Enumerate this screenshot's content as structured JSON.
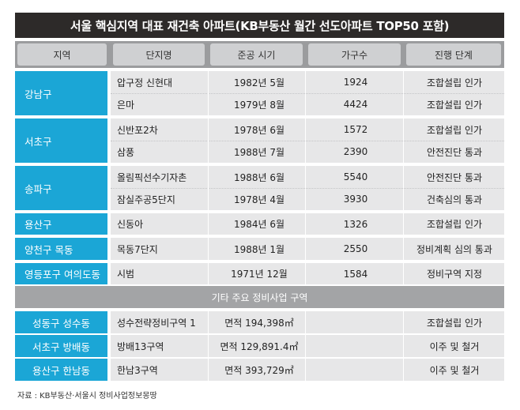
{
  "title": "서울 핵심지역 대표 재건축 아파트(KB부동산 월간 선도아파트 TOP50 포함)",
  "headers": {
    "region": "지역",
    "complex": "단지명",
    "year": "준공 시기",
    "households": "가구수",
    "stage": "진행 단계"
  },
  "groups": [
    {
      "region": "강남구",
      "rows": [
        {
          "name": "압구정 신현대",
          "year": "1982년 5월",
          "households": "1924",
          "stage": "조합설립 인가"
        },
        {
          "name": "은마",
          "year": "1979년 8월",
          "households": "4424",
          "stage": "조합설립 인가"
        }
      ]
    },
    {
      "region": "서초구",
      "rows": [
        {
          "name": "신반포2차",
          "year": "1978년 6월",
          "households": "1572",
          "stage": "조합설립 인가"
        },
        {
          "name": "삼풍",
          "year": "1988년 7월",
          "households": "2390",
          "stage": "안전진단 통과"
        }
      ]
    },
    {
      "region": "송파구",
      "rows": [
        {
          "name": "올림픽선수기자촌",
          "year": "1988년 6월",
          "households": "5540",
          "stage": "안전진단 통과"
        },
        {
          "name": "잠실주공5단지",
          "year": "1978년 4월",
          "households": "3930",
          "stage": "건축심의 통과"
        }
      ]
    },
    {
      "region": "용산구",
      "rows": [
        {
          "name": "신동아",
          "year": "1984년 6월",
          "households": "1326",
          "stage": "조합설립 인가"
        }
      ]
    },
    {
      "region": "양천구 목동",
      "rows": [
        {
          "name": "목동7단지",
          "year": "1988년 1월",
          "households": "2550",
          "stage": "정비계획 심의 통과"
        }
      ]
    },
    {
      "region": "영등포구 여의도동",
      "rows": [
        {
          "name": "시범",
          "year": "1971년 12월",
          "households": "1584",
          "stage": "정비구역 지정"
        }
      ]
    }
  ],
  "other_title": "기타 주요 정비사업 구역",
  "other_rows": [
    {
      "region": "성동구 성수동",
      "name": "성수전략정비구역 1",
      "area": "면적 194,398㎡",
      "stage": "조합설립 인가"
    },
    {
      "region": "서초구 방배동",
      "name": "방배13구역",
      "area": "면적 129,891.4㎡",
      "stage": "이주 및 철거"
    },
    {
      "region": "용산구 한남동",
      "name": "한남3구역",
      "area": "면적 393,729㎡",
      "stage": "이주 및 철거"
    }
  ],
  "source": "자료 : KB부동산·서울시 정비사업정보몽땅"
}
